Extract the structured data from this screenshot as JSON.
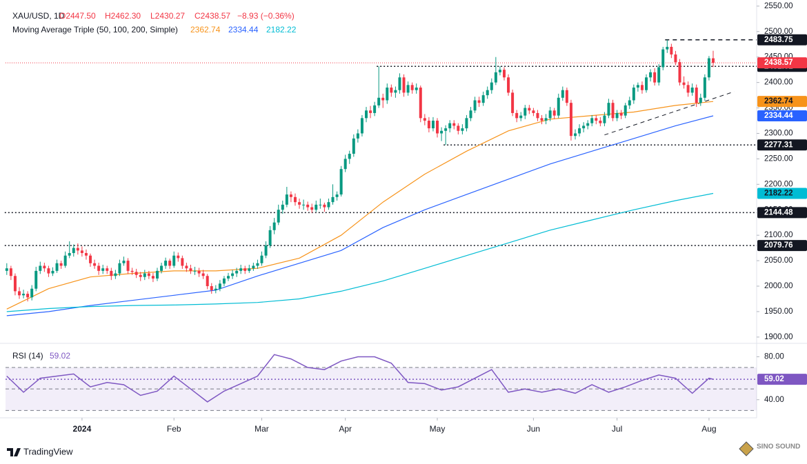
{
  "chart_data": {
    "type": "candlestick",
    "title": "XAU/USD, 1D",
    "ohlc_text": [
      "O2447.50",
      "H2462.30",
      "L2430.27",
      "C2438.57",
      "−8.93 (−0.36%)"
    ],
    "indicator_title": "Moving Average Triple (50, 100, 200, Simple)",
    "up_color": "#089981",
    "down_color": "#f23645",
    "candles": [
      [
        2030,
        2045,
        2022,
        2035
      ],
      [
        2035,
        2040,
        2012,
        2020
      ],
      [
        2020,
        2025,
        1982,
        1990
      ],
      [
        1990,
        1998,
        1975,
        1982
      ],
      [
        1982,
        1993,
        1976,
        1985
      ],
      [
        1985,
        1990,
        1970,
        1978
      ],
      [
        1978,
        2002,
        1972,
        1995
      ],
      [
        1995,
        2038,
        1990,
        2030
      ],
      [
        2030,
        2048,
        2024,
        2040
      ],
      [
        2040,
        2046,
        2028,
        2035
      ],
      [
        2035,
        2040,
        2018,
        2025
      ],
      [
        2025,
        2037,
        2020,
        2030
      ],
      [
        2030,
        2052,
        2026,
        2045
      ],
      [
        2045,
        2050,
        2034,
        2040
      ],
      [
        2040,
        2068,
        2036,
        2060
      ],
      [
        2060,
        2088,
        2055,
        2065
      ],
      [
        2065,
        2082,
        2058,
        2075
      ],
      [
        2075,
        2084,
        2062,
        2070
      ],
      [
        2070,
        2078,
        2058,
        2065
      ],
      [
        2065,
        2072,
        2052,
        2060
      ],
      [
        2060,
        2064,
        2038,
        2045
      ],
      [
        2045,
        2052,
        2034,
        2040
      ],
      [
        2040,
        2046,
        2022,
        2030
      ],
      [
        2030,
        2042,
        2024,
        2035
      ],
      [
        2035,
        2040,
        2024,
        2030
      ],
      [
        2030,
        2036,
        2012,
        2020
      ],
      [
        2020,
        2032,
        2014,
        2025
      ],
      [
        2025,
        2052,
        2020,
        2045
      ],
      [
        2045,
        2058,
        2040,
        2050
      ],
      [
        2050,
        2055,
        2024,
        2030
      ],
      [
        2030,
        2036,
        2022,
        2028
      ],
      [
        2028,
        2034,
        2016,
        2022
      ],
      [
        2022,
        2028,
        2010,
        2018
      ],
      [
        2018,
        2032,
        2012,
        2025
      ],
      [
        2025,
        2030,
        2014,
        2020
      ],
      [
        2020,
        2026,
        2008,
        2015
      ],
      [
        2015,
        2036,
        2010,
        2030
      ],
      [
        2030,
        2046,
        2025,
        2040
      ],
      [
        2040,
        2056,
        2034,
        2050
      ],
      [
        2050,
        2054,
        2034,
        2040
      ],
      [
        2040,
        2068,
        2036,
        2060
      ],
      [
        2060,
        2066,
        2048,
        2055
      ],
      [
        2055,
        2060,
        2034,
        2040
      ],
      [
        2040,
        2046,
        2028,
        2035
      ],
      [
        2035,
        2042,
        2024,
        2030
      ],
      [
        2030,
        2038,
        2022,
        2030
      ],
      [
        2030,
        2036,
        2018,
        2025
      ],
      [
        2025,
        2032,
        2014,
        2020
      ],
      [
        2020,
        2024,
        1994,
        2000
      ],
      [
        2000,
        2006,
        1985,
        1992
      ],
      [
        1992,
        2002,
        1986,
        1995
      ],
      [
        1995,
        2012,
        1990,
        2005
      ],
      [
        2005,
        2020,
        2000,
        2015
      ],
      [
        2015,
        2026,
        2010,
        2020
      ],
      [
        2020,
        2032,
        2014,
        2025
      ],
      [
        2025,
        2036,
        2018,
        2030
      ],
      [
        2030,
        2042,
        2024,
        2035
      ],
      [
        2035,
        2040,
        2024,
        2030
      ],
      [
        2030,
        2042,
        2026,
        2035
      ],
      [
        2035,
        2046,
        2030,
        2040
      ],
      [
        2040,
        2052,
        2034,
        2045
      ],
      [
        2045,
        2068,
        2040,
        2060
      ],
      [
        2060,
        2088,
        2055,
        2080
      ],
      [
        2080,
        2118,
        2075,
        2110
      ],
      [
        2110,
        2134,
        2102,
        2125
      ],
      [
        2125,
        2160,
        2120,
        2150
      ],
      [
        2150,
        2168,
        2142,
        2160
      ],
      [
        2160,
        2195,
        2155,
        2180
      ],
      [
        2180,
        2186,
        2165,
        2175
      ],
      [
        2175,
        2182,
        2158,
        2165
      ],
      [
        2165,
        2172,
        2152,
        2160
      ],
      [
        2160,
        2170,
        2150,
        2160
      ],
      [
        2160,
        2166,
        2148,
        2155
      ],
      [
        2155,
        2162,
        2144,
        2150
      ],
      [
        2150,
        2168,
        2146,
        2160
      ],
      [
        2160,
        2172,
        2152,
        2160
      ],
      [
        2160,
        2164,
        2146,
        2155
      ],
      [
        2155,
        2172,
        2150,
        2165
      ],
      [
        2165,
        2200,
        2160,
        2175
      ],
      [
        2175,
        2186,
        2168,
        2180
      ],
      [
        2180,
        2236,
        2176,
        2230
      ],
      [
        2230,
        2258,
        2224,
        2250
      ],
      [
        2250,
        2266,
        2240,
        2260
      ],
      [
        2260,
        2298,
        2254,
        2290
      ],
      [
        2290,
        2308,
        2282,
        2300
      ],
      [
        2300,
        2336,
        2294,
        2330
      ],
      [
        2330,
        2352,
        2322,
        2345
      ],
      [
        2345,
        2354,
        2330,
        2340
      ],
      [
        2340,
        2362,
        2334,
        2355
      ],
      [
        2355,
        2431.61,
        2350,
        2370
      ],
      [
        2370,
        2378,
        2350,
        2365
      ],
      [
        2365,
        2398,
        2358,
        2390
      ],
      [
        2390,
        2396,
        2372,
        2380
      ],
      [
        2380,
        2392,
        2370,
        2385
      ],
      [
        2385,
        2418,
        2378,
        2410
      ],
      [
        2410,
        2416,
        2372,
        2380
      ],
      [
        2380,
        2402,
        2374,
        2395
      ],
      [
        2395,
        2400,
        2378,
        2385
      ],
      [
        2385,
        2398,
        2378,
        2390
      ],
      [
        2390,
        2394,
        2322,
        2330
      ],
      [
        2330,
        2338,
        2316,
        2325
      ],
      [
        2325,
        2332,
        2302,
        2310
      ],
      [
        2310,
        2332,
        2304,
        2325
      ],
      [
        2325,
        2330,
        2292,
        2300
      ],
      [
        2300,
        2312,
        2285,
        2305
      ],
      [
        2305,
        2316,
        2277.31,
        2310
      ],
      [
        2310,
        2326,
        2302,
        2320
      ],
      [
        2320,
        2326,
        2308,
        2315
      ],
      [
        2315,
        2320,
        2298,
        2305
      ],
      [
        2305,
        2318,
        2298,
        2310
      ],
      [
        2310,
        2336,
        2304,
        2330
      ],
      [
        2330,
        2352,
        2324,
        2345
      ],
      [
        2345,
        2372,
        2340,
        2365
      ],
      [
        2365,
        2372,
        2352,
        2360
      ],
      [
        2360,
        2382,
        2354,
        2375
      ],
      [
        2375,
        2392,
        2368,
        2385
      ],
      [
        2385,
        2408,
        2378,
        2400
      ],
      [
        2400,
        2450,
        2395,
        2420
      ],
      [
        2420,
        2432,
        2414,
        2425
      ],
      [
        2425,
        2430,
        2404,
        2410
      ],
      [
        2410,
        2416,
        2374,
        2380
      ],
      [
        2380,
        2386,
        2334,
        2340
      ],
      [
        2340,
        2346,
        2322,
        2330
      ],
      [
        2330,
        2342,
        2324,
        2335
      ],
      [
        2335,
        2356,
        2328,
        2350
      ],
      [
        2350,
        2356,
        2338,
        2345
      ],
      [
        2345,
        2350,
        2334,
        2340
      ],
      [
        2340,
        2346,
        2324,
        2330
      ],
      [
        2330,
        2336,
        2318,
        2325
      ],
      [
        2325,
        2338,
        2318,
        2330
      ],
      [
        2330,
        2352,
        2324,
        2345
      ],
      [
        2345,
        2350,
        2328,
        2335
      ],
      [
        2335,
        2378,
        2330,
        2370
      ],
      [
        2370,
        2392,
        2364,
        2385
      ],
      [
        2385,
        2390,
        2354,
        2360
      ],
      [
        2360,
        2366,
        2286,
        2295
      ],
      [
        2295,
        2308,
        2288,
        2300
      ],
      [
        2300,
        2318,
        2294,
        2310
      ],
      [
        2310,
        2322,
        2302,
        2315
      ],
      [
        2315,
        2326,
        2308,
        2320
      ],
      [
        2320,
        2336,
        2314,
        2330
      ],
      [
        2330,
        2336,
        2318,
        2325
      ],
      [
        2325,
        2332,
        2314,
        2320
      ],
      [
        2320,
        2342,
        2314,
        2335
      ],
      [
        2335,
        2368,
        2330,
        2360
      ],
      [
        2360,
        2366,
        2324,
        2330
      ],
      [
        2330,
        2346,
        2324,
        2340
      ],
      [
        2340,
        2346,
        2328,
        2335
      ],
      [
        2335,
        2360,
        2330,
        2355
      ],
      [
        2355,
        2372,
        2348,
        2365
      ],
      [
        2365,
        2396,
        2358,
        2390
      ],
      [
        2390,
        2400,
        2382,
        2395
      ],
      [
        2395,
        2402,
        2378,
        2385
      ],
      [
        2385,
        2416,
        2380,
        2410
      ],
      [
        2410,
        2426,
        2402,
        2420
      ],
      [
        2420,
        2428,
        2394,
        2400
      ],
      [
        2400,
        2436,
        2394,
        2430
      ],
      [
        2430,
        2470,
        2424,
        2465
      ],
      [
        2465,
        2483.75,
        2458,
        2470
      ],
      [
        2470,
        2476,
        2448,
        2455
      ],
      [
        2455,
        2462,
        2434,
        2440
      ],
      [
        2440,
        2446,
        2394,
        2400
      ],
      [
        2400,
        2412,
        2388,
        2395
      ],
      [
        2395,
        2402,
        2372,
        2380
      ],
      [
        2380,
        2398,
        2374,
        2390
      ],
      [
        2390,
        2396,
        2352,
        2360
      ],
      [
        2360,
        2378,
        2354,
        2370
      ],
      [
        2370,
        2416,
        2364,
        2410
      ],
      [
        2410,
        2452,
        2404,
        2447.5
      ],
      [
        2447.5,
        2462.3,
        2430.27,
        2438.57
      ]
    ],
    "series": [
      {
        "color": "#f7931a",
        "x": [
          0,
          10,
          20,
          30,
          40,
          50,
          60,
          70,
          80,
          90,
          100,
          110,
          120,
          130,
          140,
          150,
          160,
          169
        ],
        "values": [
          1955,
          1995,
          2018,
          2025,
          2030,
          2030,
          2035,
          2055,
          2100,
          2165,
          2220,
          2265,
          2305,
          2328,
          2335,
          2342,
          2355,
          2362.74
        ]
      },
      {
        "color": "#2962ff",
        "x": [
          0,
          10,
          20,
          30,
          40,
          50,
          60,
          70,
          80,
          90,
          100,
          110,
          120,
          130,
          140,
          150,
          160,
          169
        ],
        "values": [
          1942,
          1950,
          1962,
          1972,
          1982,
          1992,
          2020,
          2045,
          2070,
          2115,
          2150,
          2180,
          2210,
          2240,
          2265,
          2290,
          2315,
          2334.44
        ]
      },
      {
        "color": "#00bcd4",
        "x": [
          0,
          10,
          20,
          30,
          40,
          50,
          60,
          70,
          80,
          90,
          100,
          110,
          120,
          130,
          140,
          150,
          160,
          169
        ],
        "values": [
          1950,
          1956,
          1960,
          1962,
          1963,
          1965,
          1968,
          1975,
          1990,
          2010,
          2035,
          2060,
          2085,
          2110,
          2130,
          2150,
          2168,
          2182.22
        ]
      }
    ],
    "ylim": [
      1889,
      2562
    ],
    "yticks": [
      {
        "value": 1900,
        "label": "1900.00"
      },
      {
        "value": 1950,
        "label": "1950.00"
      },
      {
        "value": 2000,
        "label": "2000.00"
      },
      {
        "value": 2050,
        "label": "2050.00"
      },
      {
        "value": 2100,
        "label": "2100.00"
      },
      {
        "value": 2150,
        "label": "2150.00"
      },
      {
        "value": 2200,
        "label": "2200.00"
      },
      {
        "value": 2250,
        "label": "2250.00"
      },
      {
        "value": 2300,
        "label": "2300.00"
      },
      {
        "value": 2350,
        "label": "2350.00"
      },
      {
        "value": 2400,
        "label": "2400.00"
      },
      {
        "value": 2450,
        "label": "2450.00"
      },
      {
        "value": 2500,
        "label": "2500.00"
      },
      {
        "value": 2550,
        "label": "2550.00"
      }
    ],
    "xlim": [
      -0.3,
      179.4
    ],
    "xticks": [
      {
        "value": 18,
        "label": "2024"
      },
      {
        "value": 40,
        "label": "Feb"
      },
      {
        "value": 61,
        "label": "Mar"
      },
      {
        "value": 81,
        "label": "Apr"
      },
      {
        "value": 103,
        "label": "May"
      },
      {
        "value": 126,
        "label": "Jun"
      },
      {
        "value": 146,
        "label": "Jul"
      },
      {
        "value": 168,
        "label": "Aug"
      }
    ],
    "levels": [
      {
        "value": 2483.75,
        "from": 158,
        "style": "dashed"
      },
      {
        "value": 2431.61,
        "from": 89,
        "style": "dotted"
      },
      {
        "value": 2277.31,
        "from": 105,
        "style": "dotted"
      },
      {
        "value": 2144.48,
        "from": 0,
        "style": "dotted"
      },
      {
        "value": 2079.76,
        "from": 0,
        "style": "dotted"
      }
    ],
    "trendline": {
      "x": [
        143,
        174
      ],
      "values": [
        2297,
        2382
      ]
    },
    "rsi": {
      "title": "RSI (14)",
      "color": "#7e57c2",
      "ylim": [
        27,
        88
      ],
      "bands": [
        70,
        50,
        30
      ],
      "yticks": [
        {
          "value": 80,
          "label": "80.00"
        },
        {
          "value": 40,
          "label": "40.00"
        }
      ],
      "x": [
        0,
        4,
        8,
        12,
        16,
        20,
        24,
        28,
        32,
        36,
        40,
        44,
        48,
        52,
        56,
        60,
        64,
        68,
        72,
        76,
        80,
        84,
        88,
        92,
        96,
        100,
        104,
        108,
        112,
        116,
        120,
        124,
        128,
        132,
        136,
        140,
        144,
        148,
        152,
        156,
        160,
        164,
        168,
        169
      ],
      "values": [
        62,
        47,
        60,
        62,
        64,
        52,
        56,
        54,
        44,
        48,
        62,
        50,
        38,
        48,
        55,
        62,
        82,
        78,
        70,
        68,
        76,
        80,
        80,
        74,
        56,
        55,
        49,
        52,
        60,
        68,
        47,
        50,
        47,
        50,
        46,
        54,
        47,
        52,
        58,
        63,
        60,
        46,
        60,
        59.02
      ]
    }
  },
  "footer": {
    "brand": "TradingView",
    "watermark": "SINO SOUND"
  }
}
